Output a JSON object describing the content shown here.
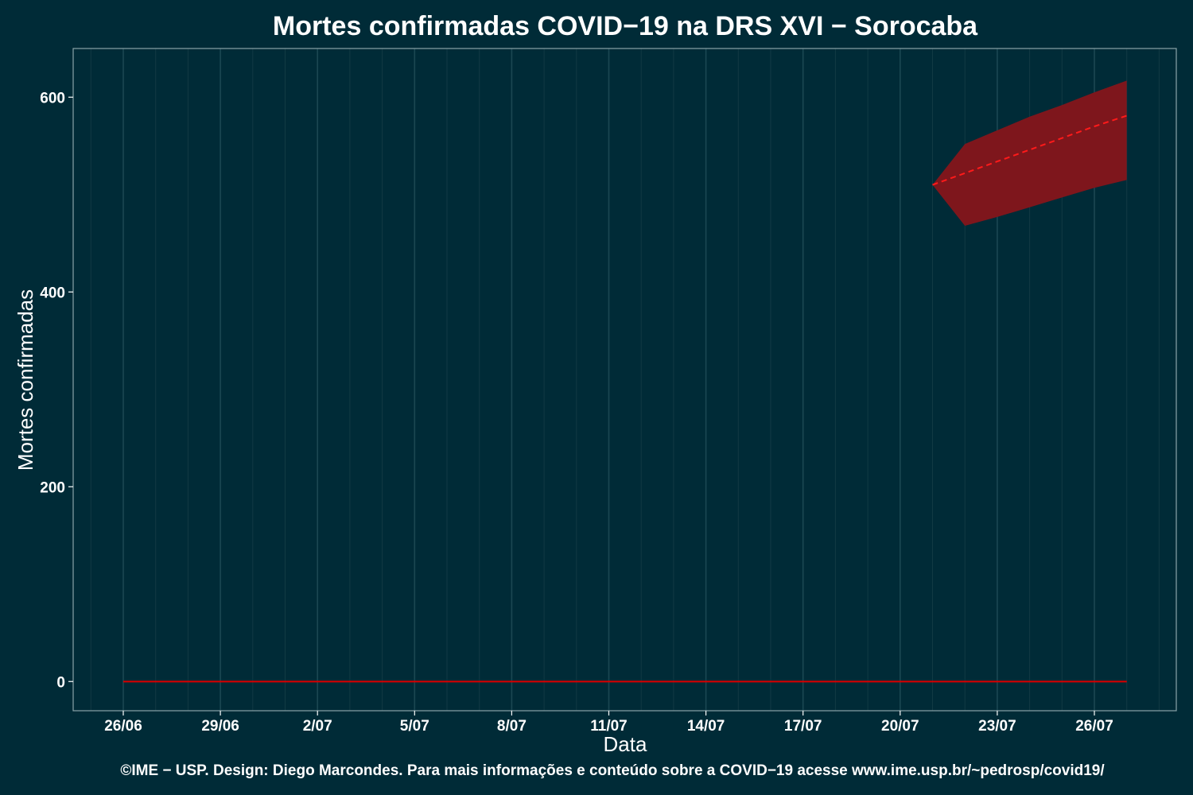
{
  "chart_data": {
    "type": "line",
    "title": "Mortes confirmadas COVID−19 na DRS XVI − Sorocaba",
    "xlabel": "Data",
    "ylabel": "Mortes confirmadas",
    "caption": "©IME − USP. Design: Diego Marcondes. Para mais informações e conteúdo sobre a COVID−19 acesse www.ime.usp.br/~pedrosp/covid19/",
    "x_ticks": [
      "26/06",
      "29/06",
      "2/07",
      "5/07",
      "8/07",
      "11/07",
      "14/07",
      "17/07",
      "20/07",
      "23/07",
      "26/07"
    ],
    "y_ticks": [
      0,
      200,
      400,
      600
    ],
    "ylim": [
      -30,
      650
    ],
    "grid": true,
    "background": "#002b37",
    "series": [
      {
        "kind": "observed",
        "color": "#d40000",
        "points": [
          {
            "x": "26/06",
            "y": 0
          },
          {
            "x": "29/06",
            "y": 0
          },
          {
            "x": "2/07",
            "y": 0
          },
          {
            "x": "5/07",
            "y": 0
          },
          {
            "x": "8/07",
            "y": 0
          },
          {
            "x": "11/07",
            "y": 0
          },
          {
            "x": "14/07",
            "y": 0
          },
          {
            "x": "17/07",
            "y": 0
          },
          {
            "x": "20/07",
            "y": 0
          },
          {
            "x": "23/07",
            "y": 0
          },
          {
            "x": "26/07",
            "y": 0
          },
          {
            "x": "27/07",
            "y": 0
          }
        ]
      },
      {
        "kind": "forecast",
        "color": "#ff1a1a",
        "style": "dashed",
        "points": [
          {
            "x": "21/07",
            "y": 510
          },
          {
            "x": "22/07",
            "y": 522
          },
          {
            "x": "23/07",
            "y": 534
          },
          {
            "x": "24/07",
            "y": 546
          },
          {
            "x": "25/07",
            "y": 558
          },
          {
            "x": "26/07",
            "y": 570
          },
          {
            "x": "27/07",
            "y": 581
          }
        ]
      }
    ],
    "band": {
      "color": "#7e161c",
      "points": [
        {
          "x": "21/07",
          "low": 510,
          "high": 510
        },
        {
          "x": "22/07",
          "low": 468,
          "high": 552
        },
        {
          "x": "23/07",
          "low": 477,
          "high": 566
        },
        {
          "x": "24/07",
          "low": 487,
          "high": 580
        },
        {
          "x": "25/07",
          "low": 497,
          "high": 592
        },
        {
          "x": "26/07",
          "low": 507,
          "high": 605
        },
        {
          "x": "27/07",
          "low": 515,
          "high": 617
        }
      ]
    }
  }
}
